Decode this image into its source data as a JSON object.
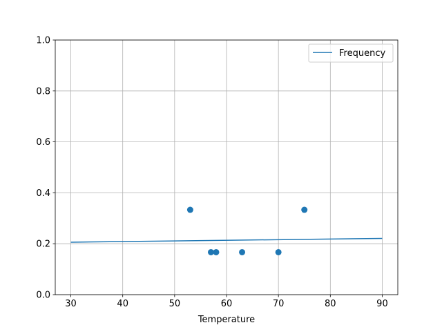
{
  "chart_data": {
    "type": "scatter",
    "xlabel": "Temperature",
    "ylabel": "",
    "title": "",
    "xlim": [
      27,
      93
    ],
    "ylim": [
      0,
      1
    ],
    "xticks": [
      30,
      40,
      50,
      60,
      70,
      80,
      90
    ],
    "yticks": [
      0.0,
      0.2,
      0.4,
      0.6,
      0.8,
      1.0
    ],
    "xtick_labels": [
      "30",
      "40",
      "50",
      "60",
      "70",
      "80",
      "90"
    ],
    "ytick_labels": [
      "0.0",
      "0.2",
      "0.4",
      "0.6",
      "0.8",
      "1.0"
    ],
    "grid": true,
    "legend_position": "top-right",
    "color": "#1f77b4",
    "scatter_points": {
      "x": [
        53,
        57,
        58,
        63,
        70,
        75
      ],
      "y": [
        0.3333,
        0.1667,
        0.1667,
        0.1667,
        0.1667,
        0.3333
      ]
    },
    "line_series": {
      "name": "Frequency",
      "x": [
        30,
        90
      ],
      "y": [
        0.206,
        0.221
      ]
    }
  }
}
